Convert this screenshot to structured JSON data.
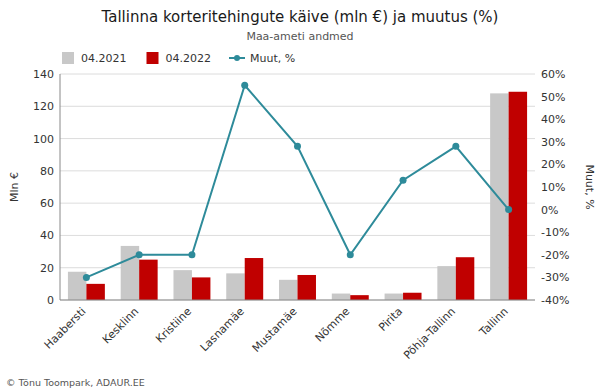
{
  "chart_data": {
    "type": "bar",
    "title": "Tallinna korteritehingute käive (mln €) ja muutus (%)",
    "subtitle": "Maa-ameti andmed",
    "ylabel": "Mln €",
    "y2label": "Muut, %",
    "annotations": [
      "© Tõnu Toompark, ADAUR.EE"
    ],
    "categories": [
      "Haabersti",
      "Kesklinn",
      "Kristiine",
      "Lasnamäe",
      "Mustamäe",
      "Nõmme",
      "Pirita",
      "Põhja-Tallinn",
      "Tallinn"
    ],
    "series": [
      {
        "name": "04.2021",
        "color": "#c8c8c8",
        "values": [
          17.5,
          33.5,
          18.5,
          16.5,
          12.5,
          4.0,
          4.0,
          21.0,
          128.0
        ]
      },
      {
        "name": "04.2022",
        "color": "#c00000",
        "values": [
          10.0,
          25.0,
          14.0,
          26.0,
          15.5,
          3.0,
          4.5,
          26.5,
          129.0
        ]
      },
      {
        "name": "Muut, %",
        "type": "line",
        "axis": "y2",
        "color": "#2e8b9a",
        "marker": "circle",
        "values": [
          -30,
          -20,
          -20,
          55,
          28,
          -20,
          13,
          28,
          0
        ]
      }
    ],
    "ylim": [
      0,
      140
    ],
    "yticks": [
      0,
      20,
      40,
      60,
      80,
      100,
      120,
      140
    ],
    "y2lim": [
      -40,
      60
    ],
    "y2ticks": [
      {
        "value": -40,
        "label": "-40%"
      },
      {
        "value": -30,
        "label": "-30%"
      },
      {
        "value": -20,
        "label": "-20%"
      },
      {
        "value": -10,
        "label": "-10%"
      },
      {
        "value": 0,
        "label": "0%"
      },
      {
        "value": 10,
        "label": "10%"
      },
      {
        "value": 20,
        "label": "20%"
      },
      {
        "value": 30,
        "label": "30%"
      },
      {
        "value": 40,
        "label": "40%"
      },
      {
        "value": 50,
        "label": "50%"
      },
      {
        "value": 60,
        "label": "60%"
      }
    ],
    "grid": true,
    "legend": "upper left"
  }
}
